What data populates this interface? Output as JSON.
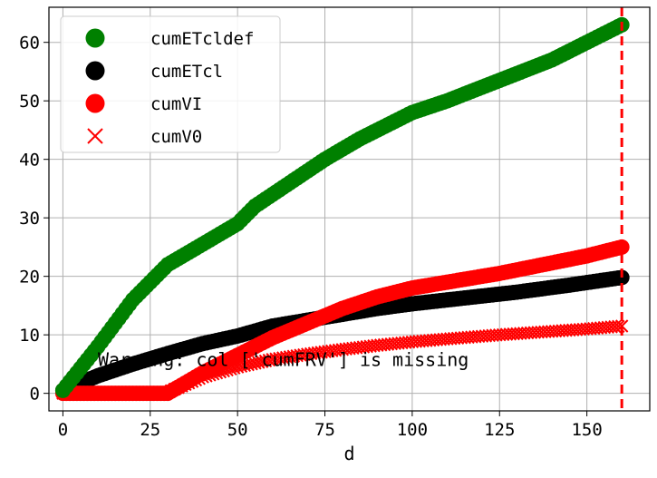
{
  "chart_data": {
    "type": "scatter",
    "xlabel": "d",
    "ylabel": "",
    "title": "",
    "xlim": [
      -4,
      168
    ],
    "ylim": [
      -3,
      66
    ],
    "xticks": [
      0,
      25,
      50,
      75,
      100,
      125,
      150
    ],
    "yticks": [
      0,
      10,
      20,
      30,
      40,
      50,
      60
    ],
    "grid": true,
    "legend_position": "upper-left",
    "vline": {
      "x": 160,
      "color": "#ff0000",
      "style": "dashed"
    },
    "annotation": {
      "text": "Warning: col ['cumFRV'] is missing",
      "x": 10,
      "y": 4.7
    },
    "series": [
      {
        "name": "cumETcldef",
        "marker": "circle",
        "color": "#008000",
        "points": [
          [
            0,
            0.5
          ],
          [
            10,
            8
          ],
          [
            20,
            16
          ],
          [
            30,
            22
          ],
          [
            40,
            25.5
          ],
          [
            50,
            29
          ],
          [
            55,
            32
          ],
          [
            65,
            36
          ],
          [
            75,
            40
          ],
          [
            85,
            43.5
          ],
          [
            100,
            48
          ],
          [
            110,
            50
          ],
          [
            125,
            53.5
          ],
          [
            140,
            57
          ],
          [
            150,
            60
          ],
          [
            160,
            63
          ]
        ]
      },
      {
        "name": "cumETcl",
        "marker": "circle",
        "color": "#000000",
        "points": [
          [
            0,
            0.5
          ],
          [
            10,
            3
          ],
          [
            20,
            5
          ],
          [
            30,
            6.8
          ],
          [
            40,
            8.5
          ],
          [
            50,
            9.8
          ],
          [
            60,
            11.5
          ],
          [
            70,
            12.5
          ],
          [
            80,
            13.5
          ],
          [
            90,
            14.5
          ],
          [
            100,
            15.3
          ],
          [
            115,
            16.3
          ],
          [
            130,
            17.3
          ],
          [
            145,
            18.5
          ],
          [
            160,
            19.8
          ]
        ]
      },
      {
        "name": "cumVI",
        "marker": "circle",
        "color": "#ff0000",
        "points": [
          [
            0,
            0
          ],
          [
            10,
            0
          ],
          [
            20,
            0
          ],
          [
            30,
            0
          ],
          [
            40,
            3.5
          ],
          [
            50,
            6.5
          ],
          [
            60,
            9.5
          ],
          [
            70,
            12
          ],
          [
            80,
            14.5
          ],
          [
            90,
            16.5
          ],
          [
            100,
            18
          ],
          [
            110,
            19
          ],
          [
            125,
            20.5
          ],
          [
            140,
            22.3
          ],
          [
            150,
            23.5
          ],
          [
            160,
            25
          ]
        ]
      },
      {
        "name": "cumV0",
        "marker": "x",
        "color": "#ff0000",
        "points": [
          [
            0,
            0
          ],
          [
            10,
            0
          ],
          [
            20,
            0
          ],
          [
            30,
            0.2
          ],
          [
            40,
            2.8
          ],
          [
            50,
            4.5
          ],
          [
            60,
            5.8
          ],
          [
            70,
            6.7
          ],
          [
            80,
            7.5
          ],
          [
            90,
            8.2
          ],
          [
            100,
            8.8
          ],
          [
            110,
            9.3
          ],
          [
            125,
            10
          ],
          [
            140,
            10.6
          ],
          [
            150,
            11
          ],
          [
            160,
            11.5
          ]
        ]
      }
    ]
  }
}
